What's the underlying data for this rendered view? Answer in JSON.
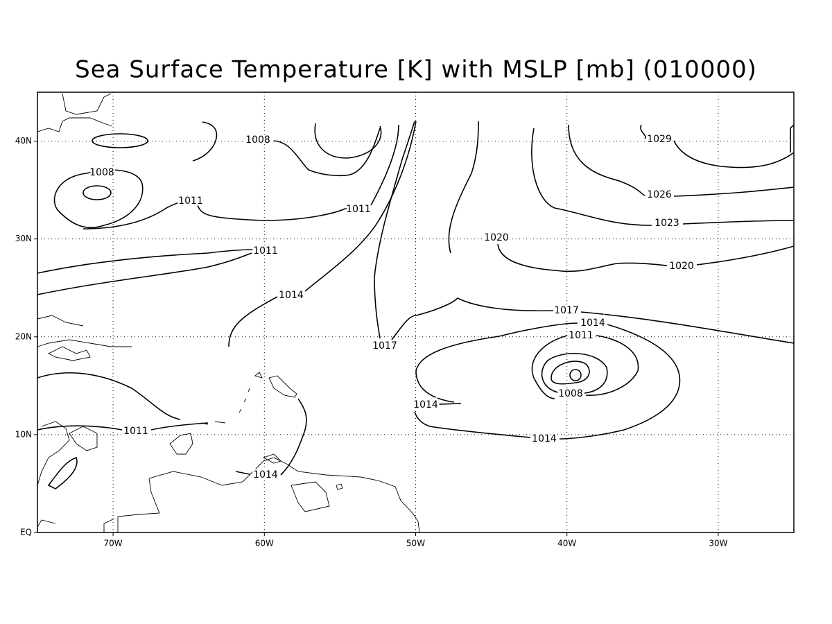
{
  "header": {
    "title": "Sea Surface Temperature [K] with MSLP [mb] (010000)"
  },
  "axes": {
    "x_labels": [
      "70W",
      "60W",
      "50W",
      "40W",
      "30W"
    ],
    "y_labels": [
      "EQ",
      "10N",
      "20N",
      "30N",
      "40N"
    ]
  },
  "contour_labels": [
    "1008",
    "1008",
    "1011",
    "1011",
    "1011",
    "1014",
    "1017",
    "1020",
    "1029",
    "1026",
    "1023",
    "1020",
    "1017",
    "1014",
    "1011",
    "1008",
    "1014",
    "1014",
    "1011",
    "1014"
  ]
}
